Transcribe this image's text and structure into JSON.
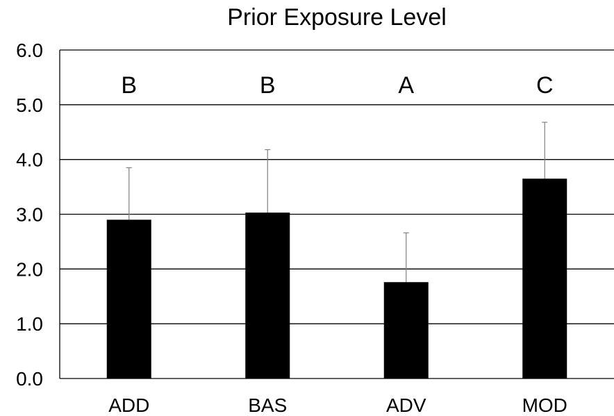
{
  "chart_data": {
    "type": "bar",
    "title": "Prior Exposure Level",
    "xlabel": "",
    "ylabel": "",
    "ylim": [
      0,
      6
    ],
    "yticks": [
      "0.0",
      "1.0",
      "2.0",
      "3.0",
      "4.0",
      "5.0",
      "6.0"
    ],
    "categories": [
      "ADD",
      "BAS",
      "ADV",
      "MOD"
    ],
    "values": [
      2.9,
      3.03,
      1.76,
      3.65
    ],
    "error_upper": [
      0.95,
      1.15,
      0.9,
      1.03
    ],
    "significance_labels": [
      "B",
      "B",
      "A",
      "C"
    ],
    "grid": true,
    "legend": "none",
    "bar_color": "#000000",
    "grid_color": "#000000"
  }
}
